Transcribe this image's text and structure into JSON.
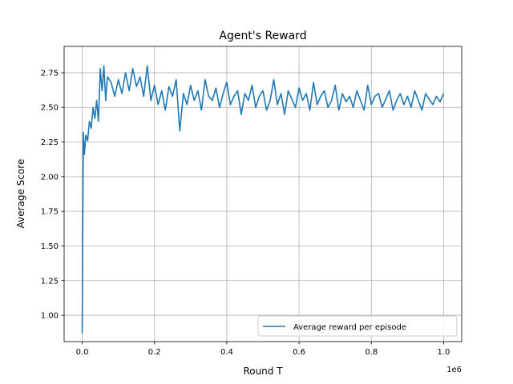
{
  "chart_data": {
    "type": "line",
    "title": "Agent's Reward",
    "xlabel": "Round T",
    "ylabel": "Average Score",
    "x_offset_label": "1e6",
    "xlim": [
      -0.05,
      1.05
    ],
    "ylim": [
      0.81,
      2.94
    ],
    "x_ticks": [
      0.0,
      0.2,
      0.4,
      0.6,
      0.8,
      1.0
    ],
    "x_tick_labels": [
      "0.0",
      "0.2",
      "0.4",
      "0.6",
      "0.8",
      "1.0"
    ],
    "y_ticks": [
      1.0,
      1.25,
      1.5,
      1.75,
      2.0,
      2.25,
      2.5,
      2.75
    ],
    "y_tick_labels": [
      "1.00",
      "1.25",
      "1.50",
      "1.75",
      "2.00",
      "2.25",
      "2.50",
      "2.75"
    ],
    "grid": true,
    "legend_position": "bottom-right",
    "color": "#1f77b4",
    "series": [
      {
        "name": "Average reward per episode",
        "x": [
          0.0,
          0.003,
          0.006,
          0.01,
          0.015,
          0.02,
          0.025,
          0.03,
          0.035,
          0.04,
          0.045,
          0.05,
          0.055,
          0.06,
          0.065,
          0.07,
          0.08,
          0.09,
          0.1,
          0.11,
          0.12,
          0.13,
          0.14,
          0.15,
          0.16,
          0.17,
          0.18,
          0.19,
          0.2,
          0.21,
          0.22,
          0.23,
          0.24,
          0.25,
          0.26,
          0.27,
          0.28,
          0.29,
          0.3,
          0.31,
          0.32,
          0.33,
          0.34,
          0.35,
          0.36,
          0.37,
          0.38,
          0.39,
          0.4,
          0.41,
          0.42,
          0.43,
          0.44,
          0.45,
          0.46,
          0.47,
          0.48,
          0.49,
          0.5,
          0.51,
          0.52,
          0.53,
          0.54,
          0.55,
          0.56,
          0.57,
          0.58,
          0.59,
          0.6,
          0.61,
          0.62,
          0.63,
          0.64,
          0.65,
          0.66,
          0.67,
          0.68,
          0.69,
          0.7,
          0.71,
          0.72,
          0.73,
          0.74,
          0.75,
          0.76,
          0.77,
          0.78,
          0.79,
          0.8,
          0.81,
          0.82,
          0.83,
          0.84,
          0.85,
          0.86,
          0.87,
          0.88,
          0.89,
          0.9,
          0.91,
          0.92,
          0.93,
          0.94,
          0.95,
          0.96,
          0.97,
          0.98,
          0.99,
          1.0
        ],
        "y": [
          0.87,
          2.32,
          2.16,
          2.3,
          2.26,
          2.4,
          2.35,
          2.5,
          2.42,
          2.55,
          2.4,
          2.78,
          2.62,
          2.8,
          2.55,
          2.72,
          2.68,
          2.58,
          2.7,
          2.6,
          2.75,
          2.62,
          2.78,
          2.65,
          2.72,
          2.58,
          2.8,
          2.55,
          2.66,
          2.52,
          2.62,
          2.48,
          2.65,
          2.58,
          2.7,
          2.33,
          2.6,
          2.52,
          2.66,
          2.55,
          2.62,
          2.48,
          2.7,
          2.58,
          2.55,
          2.64,
          2.5,
          2.6,
          2.68,
          2.52,
          2.58,
          2.62,
          2.45,
          2.6,
          2.55,
          2.66,
          2.5,
          2.58,
          2.62,
          2.48,
          2.55,
          2.7,
          2.52,
          2.6,
          2.45,
          2.62,
          2.56,
          2.5,
          2.64,
          2.55,
          2.6,
          2.48,
          2.68,
          2.52,
          2.58,
          2.62,
          2.5,
          2.55,
          2.66,
          2.48,
          2.6,
          2.54,
          2.58,
          2.5,
          2.62,
          2.55,
          2.48,
          2.66,
          2.52,
          2.58,
          2.6,
          2.5,
          2.56,
          2.62,
          2.48,
          2.55,
          2.6,
          2.52,
          2.58,
          2.5,
          2.62,
          2.55,
          2.48,
          2.6,
          2.56,
          2.52,
          2.58,
          2.54,
          2.6
        ]
      }
    ]
  }
}
